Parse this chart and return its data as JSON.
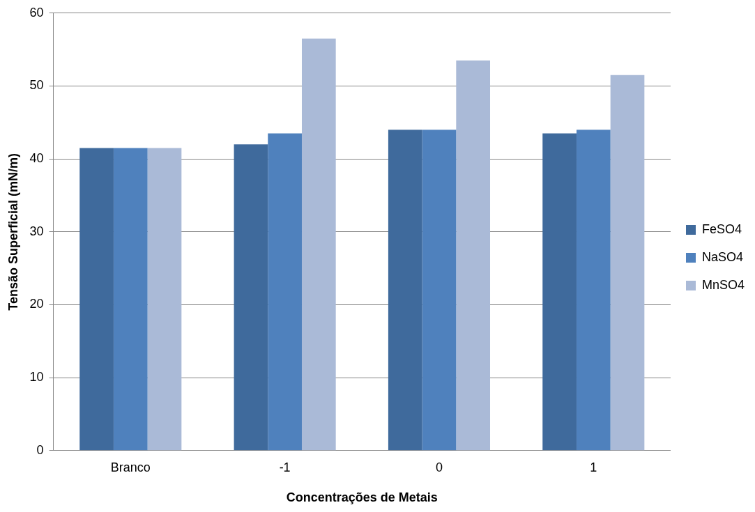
{
  "chart_data": {
    "type": "bar",
    "xlabel": "Concentrações de Metais",
    "ylabel": "Tensão Superficial (mN/m)",
    "categories": [
      "Branco",
      "-1",
      "0",
      "1"
    ],
    "series": [
      {
        "name": "FeSO4",
        "color": "#3f6a9c",
        "values": [
          41.5,
          42,
          44,
          43.5
        ]
      },
      {
        "name": "NaSO4",
        "color": "#4f81bd",
        "values": [
          41.5,
          43.5,
          44,
          44
        ]
      },
      {
        "name": "MnSO4",
        "color": "#aabad7",
        "values": [
          41.5,
          56.5,
          53.5,
          51.5
        ]
      }
    ],
    "ylim": [
      0,
      60
    ],
    "yticks": [
      0,
      10,
      20,
      30,
      40,
      50,
      60
    ],
    "grid": "y",
    "legend": "right"
  }
}
